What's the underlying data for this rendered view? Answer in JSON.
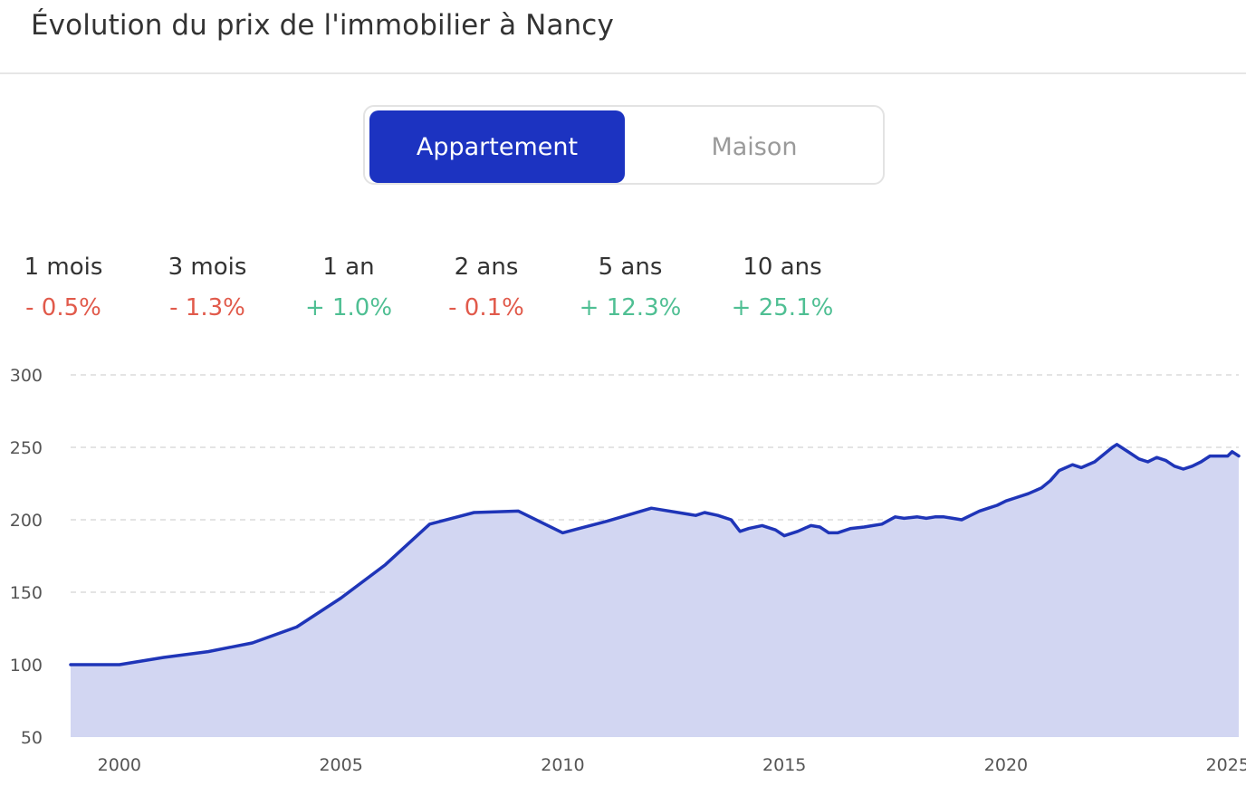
{
  "header": {
    "title": "Évolution du prix de l'immobilier à Nancy"
  },
  "toggle": {
    "options": [
      "Appartement",
      "Maison"
    ],
    "selected": "Appartement"
  },
  "stats": [
    {
      "label": "1 mois",
      "value": "- 0.5%",
      "trend": "negative"
    },
    {
      "label": "3 mois",
      "value": "- 1.3%",
      "trend": "negative"
    },
    {
      "label": "1 an",
      "value": "+ 1.0%",
      "trend": "positive"
    },
    {
      "label": "2 ans",
      "value": "- 0.1%",
      "trend": "negative"
    },
    {
      "label": "5 ans",
      "value": "+ 12.3%",
      "trend": "positive"
    },
    {
      "label": "10 ans",
      "value": "+ 25.1%",
      "trend": "positive"
    }
  ],
  "colors": {
    "accent": "#1c33c1",
    "line": "#1f35b8",
    "area": "#d2d6f2",
    "negative": "#e15a4b",
    "positive": "#4fbf93"
  },
  "chart_data": {
    "type": "area",
    "title": "",
    "xlabel": "",
    "ylabel": "",
    "xlim": [
      1998.9,
      2025.25
    ],
    "ylim": [
      50,
      300
    ],
    "yticks": [
      50,
      100,
      150,
      200,
      250,
      300
    ],
    "xticks": [
      2000,
      2005,
      2010,
      2015,
      2020,
      2025
    ],
    "grid": true,
    "series": [
      {
        "name": "",
        "x": [
          1998.9,
          2000.0,
          2001.0,
          2002.0,
          2003.0,
          2004.0,
          2005.0,
          2006.0,
          2007.0,
          2008.0,
          2009.0,
          2010.0,
          2011.0,
          2012.0,
          2013.0,
          2013.2,
          2013.5,
          2013.8,
          2014.0,
          2014.2,
          2014.5,
          2014.8,
          2015.0,
          2015.3,
          2015.6,
          2015.8,
          2016.0,
          2016.2,
          2016.5,
          2016.8,
          2017.0,
          2017.2,
          2017.5,
          2017.7,
          2018.0,
          2018.2,
          2018.4,
          2018.6,
          2018.8,
          2019.0,
          2019.2,
          2019.4,
          2019.6,
          2019.8,
          2020.0,
          2020.2,
          2020.5,
          2020.8,
          2021.0,
          2021.2,
          2021.5,
          2021.7,
          2022.0,
          2022.2,
          2022.4,
          2022.5,
          2022.6,
          2022.8,
          2023.0,
          2023.2,
          2023.4,
          2023.6,
          2023.8,
          2024.0,
          2024.2,
          2024.4,
          2024.6,
          2024.8,
          2025.0,
          2025.1,
          2025.25
        ],
        "values": [
          100,
          100,
          105,
          109,
          115,
          126,
          146,
          169,
          197,
          205,
          206,
          191,
          199,
          208,
          203,
          205,
          203,
          200,
          192,
          194,
          196,
          193,
          189,
          192,
          196,
          195,
          191,
          191,
          194,
          195,
          196,
          197,
          202,
          201,
          202,
          201,
          202,
          202,
          201,
          200,
          203,
          206,
          208,
          210,
          213,
          215,
          218,
          222,
          227,
          234,
          238,
          236,
          240,
          245,
          250,
          252,
          250,
          246,
          242,
          240,
          243,
          241,
          237,
          235,
          237,
          240,
          244,
          244,
          244,
          247,
          244
        ]
      }
    ]
  }
}
